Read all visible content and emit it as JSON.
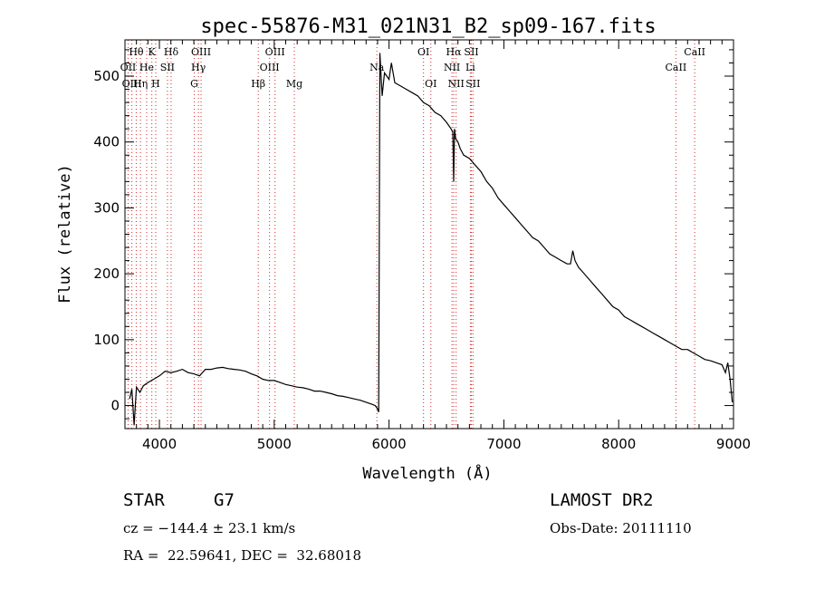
{
  "chart_data": {
    "type": "line",
    "title": "spec-55876-M31_021N31_B2_sp09-167.fits",
    "xlabel": "Wavelength (Å)",
    "ylabel": "Flux (relative)",
    "xlim": [
      3700,
      9000
    ],
    "ylim": [
      -35,
      555
    ],
    "xticks": [
      4000,
      5000,
      6000,
      7000,
      8000,
      9000
    ],
    "yticks": [
      0,
      100,
      200,
      300,
      400,
      500
    ],
    "grid": false,
    "line_color": "#000000",
    "marker_color": "#d62728",
    "series": [
      {
        "x": [
          3740,
          3760,
          3780,
          3800,
          3830,
          3860,
          3900,
          3950,
          4000,
          4050,
          4100,
          4150,
          4200,
          4250,
          4300,
          4350,
          4400,
          4450,
          4500,
          4550,
          4600,
          4650,
          4700,
          4750,
          4800,
          4850,
          4900,
          4950,
          5000,
          5050,
          5100,
          5150,
          5200,
          5250,
          5300,
          5350,
          5400,
          5450,
          5500,
          5550,
          5600,
          5650,
          5700,
          5750,
          5800,
          5850,
          5880,
          5900,
          5910,
          5920,
          5940,
          5960,
          5980,
          6000,
          6020,
          6050,
          6100,
          6150,
          6200,
          6250,
          6300,
          6350,
          6400,
          6450,
          6500,
          6540,
          6555,
          6563,
          6570,
          6580,
          6600,
          6620,
          6650,
          6700,
          6750,
          6800,
          6850,
          6900,
          6950,
          7000,
          7050,
          7100,
          7150,
          7200,
          7250,
          7300,
          7350,
          7400,
          7450,
          7500,
          7550,
          7580,
          7600,
          7620,
          7650,
          7700,
          7750,
          7800,
          7850,
          7900,
          7950,
          8000,
          8050,
          8100,
          8150,
          8200,
          8250,
          8300,
          8350,
          8400,
          8450,
          8500,
          8550,
          8600,
          8650,
          8700,
          8750,
          8800,
          8850,
          8900,
          8930,
          8950,
          8970,
          8990
        ],
        "y": [
          10,
          25,
          -30,
          28,
          20,
          30,
          35,
          40,
          45,
          52,
          50,
          52,
          55,
          50,
          48,
          45,
          55,
          55,
          57,
          58,
          56,
          55,
          54,
          52,
          48,
          45,
          40,
          38,
          38,
          35,
          32,
          30,
          28,
          27,
          25,
          22,
          22,
          20,
          18,
          15,
          14,
          12,
          10,
          8,
          5,
          2,
          0,
          -5,
          -10,
          535,
          470,
          505,
          500,
          495,
          520,
          490,
          485,
          480,
          475,
          470,
          460,
          455,
          445,
          440,
          430,
          420,
          415,
          340,
          420,
          405,
          400,
          390,
          380,
          375,
          365,
          355,
          340,
          330,
          315,
          305,
          295,
          285,
          275,
          265,
          255,
          250,
          240,
          230,
          225,
          220,
          215,
          215,
          235,
          220,
          210,
          200,
          190,
          180,
          170,
          160,
          150,
          145,
          135,
          130,
          125,
          120,
          115,
          110,
          105,
          100,
          95,
          90,
          85,
          85,
          80,
          75,
          70,
          68,
          65,
          62,
          50,
          65,
          40,
          5
        ]
      }
    ],
    "lines": [
      {
        "label": "Hθ",
        "wl": 3798,
        "row": 0
      },
      {
        "label": "OII",
        "wl": 3727,
        "row": 1
      },
      {
        "label": "OIII",
        "wl": 3760,
        "row": 2
      },
      {
        "label": "H",
        "wl": 3968,
        "row": 2
      },
      {
        "label": "K",
        "wl": 3934,
        "row": 0
      },
      {
        "label": "Hδ",
        "wl": 4102,
        "row": 0
      },
      {
        "label": "He",
        "wl": 3889,
        "row": 1
      },
      {
        "label": "Hη",
        "wl": 3835,
        "row": 2
      },
      {
        "label": "SII",
        "wl": 4070,
        "row": 1
      },
      {
        "label": "OIII",
        "wl": 4363,
        "row": 0
      },
      {
        "label": "Hγ",
        "wl": 4340,
        "row": 1
      },
      {
        "label": "G",
        "wl": 4304,
        "row": 2
      },
      {
        "label": "Hβ",
        "wl": 4861,
        "row": 2
      },
      {
        "label": "OIII",
        "wl": 5007,
        "row": 0
      },
      {
        "label": "OIII",
        "wl": 4959,
        "row": 1
      },
      {
        "label": "Mg",
        "wl": 5175,
        "row": 2
      },
      {
        "label": "Na",
        "wl": 5894,
        "row": 1
      },
      {
        "label": "OI",
        "wl": 6300,
        "row": 0
      },
      {
        "label": "OI",
        "wl": 6364,
        "row": 2
      },
      {
        "label": "Hα",
        "wl": 6563,
        "row": 0
      },
      {
        "label": "SII",
        "wl": 6717,
        "row": 0
      },
      {
        "label": "NII",
        "wl": 6548,
        "row": 1
      },
      {
        "label": "Li",
        "wl": 6708,
        "row": 1
      },
      {
        "label": "NII",
        "wl": 6584,
        "row": 2
      },
      {
        "label": "SII",
        "wl": 6731,
        "row": 2
      },
      {
        "label": "CaII",
        "wl": 8662,
        "row": 0
      },
      {
        "label": "CaII",
        "wl": 8498,
        "row": 1
      }
    ]
  },
  "info": {
    "object_class": "STAR",
    "subclass": "G7",
    "survey": "LAMOST DR2",
    "cz": "cz = −144.4 ± 23.1 km/s",
    "obs_date": "Obs-Date: 20111110",
    "coords": "RA =  22.59641, DEC =  32.68018"
  }
}
